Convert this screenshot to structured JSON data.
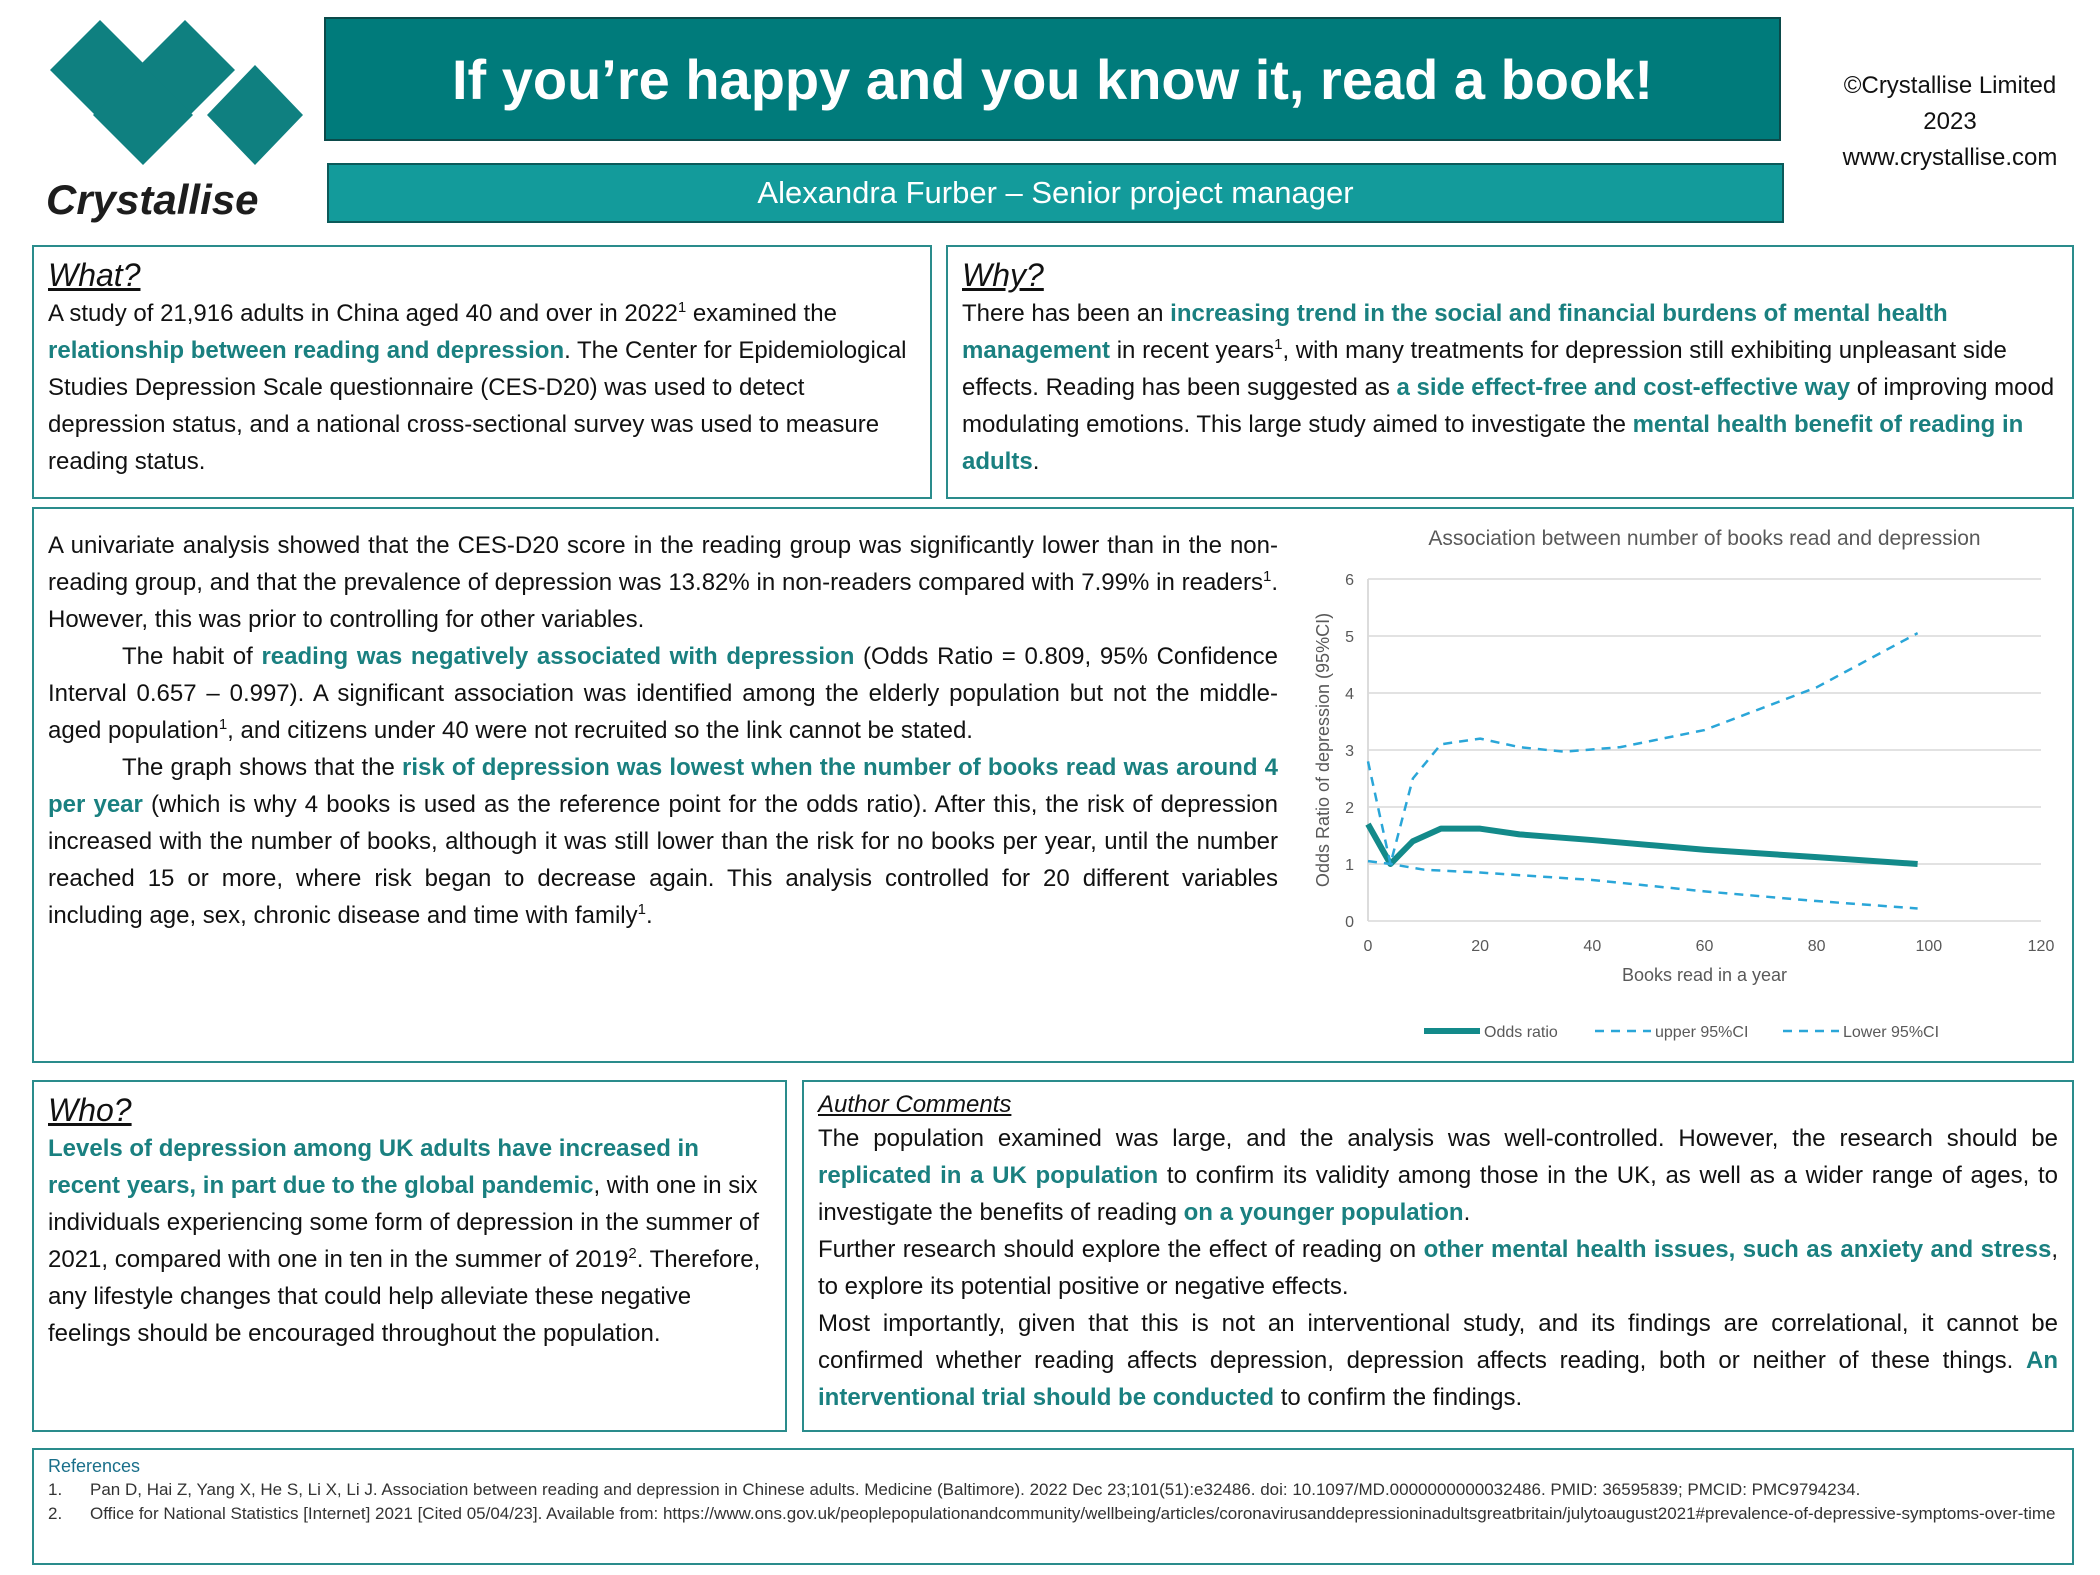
{
  "header": {
    "logo_text": "Crystallise",
    "title": "If you’re happy and you know it, read a book!",
    "subtitle": "Alexandra Furber – Senior project manager",
    "copyright": [
      "©Crystallise Limited",
      "2023",
      "www.crystallise.com"
    ]
  },
  "sections": {
    "what": {
      "heading": "What?",
      "paragraphs": [
        [
          {
            "text": "A study of 21,916 adults in China aged 40 and over in 2022"
          },
          {
            "text": "1",
            "style": "sup"
          },
          {
            "text": " examined the "
          },
          {
            "text": "relationship between reading and depression",
            "style": "highlight"
          },
          {
            "text": ". The Center for Epidemiological Studies Depression Scale questionnaire (CES-D20) was used to detect depression status, and a national cross-sectional survey was used to measure reading status."
          }
        ]
      ]
    },
    "why": {
      "heading": "Why?",
      "paragraphs": [
        [
          {
            "text": "There has been an "
          },
          {
            "text": "increasing trend in the social and financial burdens of mental health management",
            "style": "highlight"
          },
          {
            "text": " in recent years"
          },
          {
            "text": "1",
            "style": "sup"
          },
          {
            "text": ", with many treatments for depression still exhibiting unpleasant side effects. Reading has been suggested as "
          },
          {
            "text": "a side effect-free and cost-effective way",
            "style": "highlight"
          },
          {
            "text": " of improving mood modulating emotions. This large study aimed to investigate the "
          },
          {
            "text": "mental health benefit of reading in adults",
            "style": "highlight"
          },
          {
            "text": "."
          }
        ]
      ]
    },
    "findings": {
      "paragraphs": [
        [
          {
            "text": "A univariate analysis showed that the CES-D20 score in the reading group was significantly lower than in the non-reading group, and that the prevalence of depression was 13.82% in non-readers compared with 7.99% in readers"
          },
          {
            "text": "1",
            "style": "sup"
          },
          {
            "text": ". However,  this was prior to controlling for other variables."
          }
        ],
        [
          {
            "text": "The habit of "
          },
          {
            "text": "reading was negatively associated with depression",
            "style": "highlight"
          },
          {
            "text": " (Odds Ratio = 0.809, 95% Confidence Interval 0.657 – 0.997). A significant association was identified among the elderly population but not the middle-aged population"
          },
          {
            "text": "1",
            "style": "sup"
          },
          {
            "text": ", and citizens under 40 were not recruited so the link cannot be stated."
          }
        ],
        [
          {
            "text": "The graph shows that the "
          },
          {
            "text": "risk of depression was lowest when the number of books read was around 4 per year",
            "style": "highlight"
          },
          {
            "text": " (which is why 4 books is used as the reference point for the odds ratio). After this, the risk of depression increased with the number of books, although it was still lower than the risk for no books per year, until the number reached 15 or more, where risk began to decrease again. This analysis controlled for 20 different variables including age, sex, chronic disease and time with family"
          },
          {
            "text": "1",
            "style": "sup"
          },
          {
            "text": "."
          }
        ]
      ]
    },
    "who": {
      "heading": "Who?",
      "paragraphs": [
        [
          {
            "text": "Levels of depression among UK adults have increased in recent years, in part due to the global pandemic",
            "style": "highlight"
          },
          {
            "text": ", with one in six individuals experiencing some form of depression in the summer of 2021, compared with one in ten in the summer of 2019"
          },
          {
            "text": "2",
            "style": "sup"
          },
          {
            "text": ". Therefore, any lifestyle changes that could help alleviate these negative feelings should be encouraged throughout the population."
          }
        ]
      ]
    },
    "comments": {
      "heading": "Author Comments",
      "paragraphs": [
        [
          {
            "text": "The population examined was large, and the analysis was well-controlled. However, the research should be "
          },
          {
            "text": "replicated in a UK population",
            "style": "highlight"
          },
          {
            "text": " to confirm its validity among those in the UK, as well as a wider range of ages, to investigate the benefits of reading "
          },
          {
            "text": "on a younger population",
            "style": "highlight"
          },
          {
            "text": "."
          }
        ],
        [
          {
            "text": "Further research should explore the effect of reading on "
          },
          {
            "text": "other mental health issues, such as anxiety and stress",
            "style": "highlight"
          },
          {
            "text": ", to explore its potential positive or negative effects."
          }
        ],
        [
          {
            "text": "Most importantly, given that this is not an interventional study, and its findings are correlational, it cannot be confirmed whether reading affects depression, depression affects reading, both or neither of these things. "
          },
          {
            "text": "An interventional trial should be conducted",
            "style": "highlight"
          },
          {
            "text": " to confirm the findings."
          }
        ]
      ]
    }
  },
  "references": {
    "heading": "References",
    "items": [
      {
        "label": "1.",
        "text": "Pan D, Hai Z, Yang X, He S, Li X, Li J. Association between reading and depression in Chinese adults. Medicine (Baltimore). 2022 Dec 23;101(51):e32486. doi: 10.1097/MD.0000000000032486. PMID: 36595839; PMCID: PMC9794234."
      },
      {
        "label": "2.",
        "text": "Office for National Statistics [Internet] 2021 [Cited 05/04/23]. Available from: https://www.ons.gov.uk/peoplepopulationandcommunity/wellbeing/articles/coronavirusanddepressioninadultsgreatbritain/julytoaugust2021#prevalence-of-depressive-symptoms-over-time"
      }
    ]
  },
  "chart_data": {
    "type": "line",
    "title": "Association between number of books read and depression",
    "x_label": "Books read in a year",
    "y_label": "Odds Ratio of depression (95%CI)",
    "xlim": [
      0,
      120
    ],
    "xticks": [
      0,
      20,
      40,
      60,
      80,
      100,
      120
    ],
    "ylim": [
      0,
      6
    ],
    "yticks": [
      0,
      1,
      2,
      3,
      4,
      5,
      6
    ],
    "grid": true,
    "legend": "bottom",
    "series": [
      {
        "name": "Odds ratio",
        "color": "#138a8a",
        "style": "solid",
        "x": [
          0,
          4,
          8,
          13,
          20,
          27,
          40,
          60,
          80,
          98
        ],
        "values": [
          1.7,
          1.0,
          1.4,
          1.62,
          1.62,
          1.52,
          1.42,
          1.25,
          1.12,
          1.0
        ]
      },
      {
        "name": "upper 95%CI",
        "color": "#2aa6d8",
        "style": "dashed",
        "x": [
          0,
          4,
          8,
          13,
          20,
          27,
          35,
          45,
          60,
          80,
          98
        ],
        "values": [
          2.8,
          1.0,
          2.5,
          3.1,
          3.2,
          3.05,
          2.97,
          3.05,
          3.35,
          4.1,
          5.05
        ]
      },
      {
        "name": "Lower 95%CI",
        "color": "#2aa6d8",
        "style": "dashed",
        "x": [
          0,
          4,
          10,
          20,
          40,
          60,
          80,
          98
        ],
        "values": [
          1.05,
          1.0,
          0.9,
          0.85,
          0.72,
          0.52,
          0.35,
          0.22
        ]
      }
    ]
  }
}
